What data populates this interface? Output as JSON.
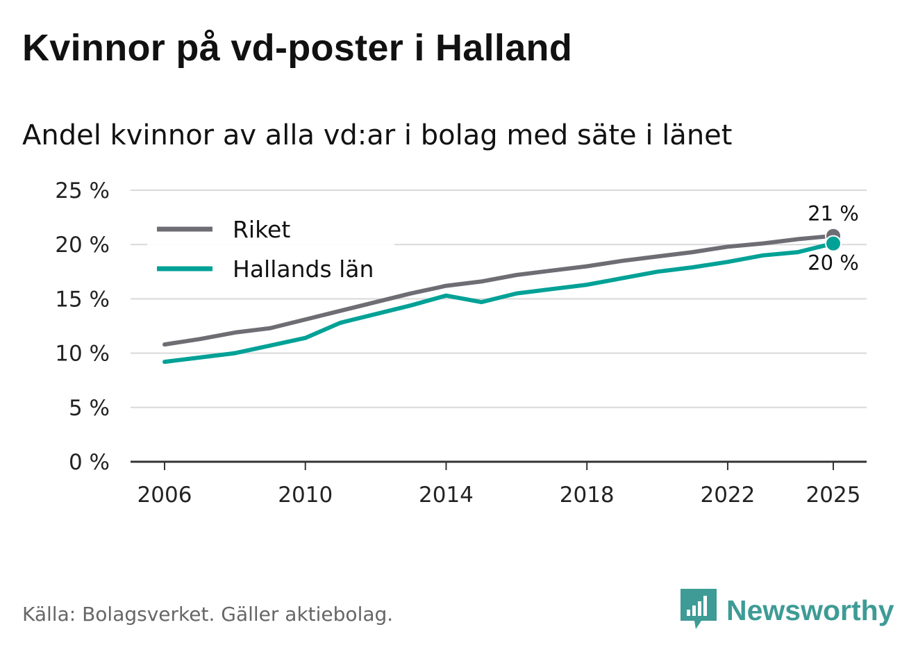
{
  "title": "Kvinnor på vd-poster i Halland",
  "subtitle": "Andel kvinnor av alla vd:ar i bolag med säte i länet",
  "source": "Källa: Bolagsverket. Gäller aktiebolag.",
  "brand": {
    "name": "Newsworthy",
    "icon": "newsworthy-logo-icon"
  },
  "colors": {
    "riket": "#6e6d74",
    "halland": "#00a196",
    "grid": "#d9d9d9",
    "axis": "#333333"
  },
  "chart_data": {
    "type": "line",
    "title": "Kvinnor på vd-poster i Halland",
    "subtitle": "Andel kvinnor av alla vd:ar i bolag med säte i länet",
    "xlabel": "",
    "ylabel": "",
    "x": [
      2006,
      2007,
      2008,
      2009,
      2010,
      2011,
      2012,
      2013,
      2014,
      2015,
      2016,
      2017,
      2018,
      2019,
      2020,
      2021,
      2022,
      2023,
      2024,
      2025
    ],
    "x_ticks": [
      "2006",
      "2010",
      "2014",
      "2018",
      "2022",
      "2025"
    ],
    "y_ticks": [
      "0 %",
      "5 %",
      "10 %",
      "15 %",
      "20 %",
      "25 %"
    ],
    "ylim": [
      0,
      25
    ],
    "grid": true,
    "legend_position": "top-left",
    "series": [
      {
        "name": "Riket",
        "color": "#6e6d74",
        "values": [
          10.8,
          11.3,
          11.9,
          12.3,
          13.1,
          13.9,
          14.7,
          15.5,
          16.2,
          16.6,
          17.2,
          17.6,
          18.0,
          18.5,
          18.9,
          19.3,
          19.8,
          20.1,
          20.5,
          20.8
        ],
        "end_label": "21 %"
      },
      {
        "name": "Hallands län",
        "color": "#00a196",
        "values": [
          9.2,
          9.6,
          10.0,
          10.7,
          11.4,
          12.8,
          13.6,
          14.4,
          15.3,
          14.7,
          15.5,
          15.9,
          16.3,
          16.9,
          17.5,
          17.9,
          18.4,
          19.0,
          19.3,
          20.1
        ],
        "end_label": "20 %"
      }
    ]
  }
}
